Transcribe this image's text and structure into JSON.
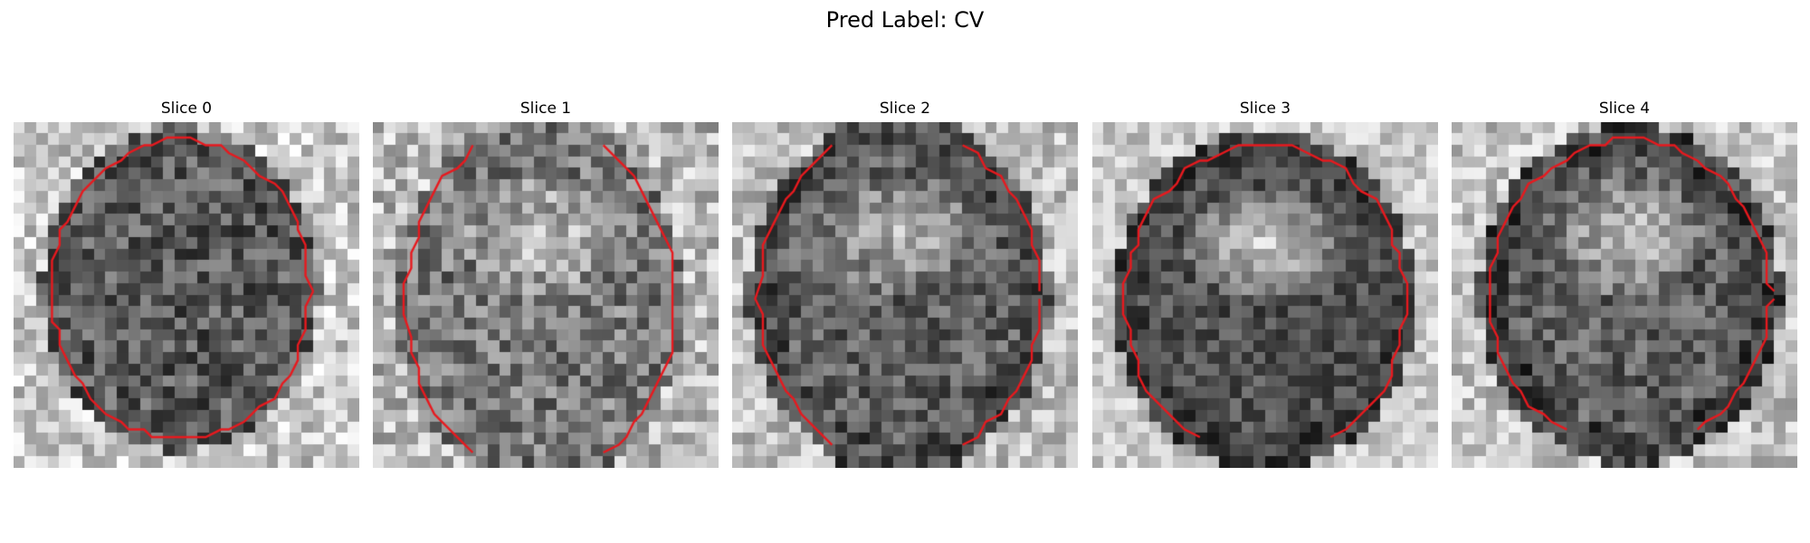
{
  "figure": {
    "title": "Pred Label: CV"
  },
  "panels": [
    {
      "title": "Slice 0"
    },
    {
      "title": "Slice 1"
    },
    {
      "title": "Slice 2"
    },
    {
      "title": "Slice 3"
    },
    {
      "title": "Slice 4"
    }
  ],
  "colors": {
    "contour": "#e8191e",
    "background": "#ffffff"
  },
  "image": {
    "colormap": "grayscale",
    "grid_cells": 30
  }
}
